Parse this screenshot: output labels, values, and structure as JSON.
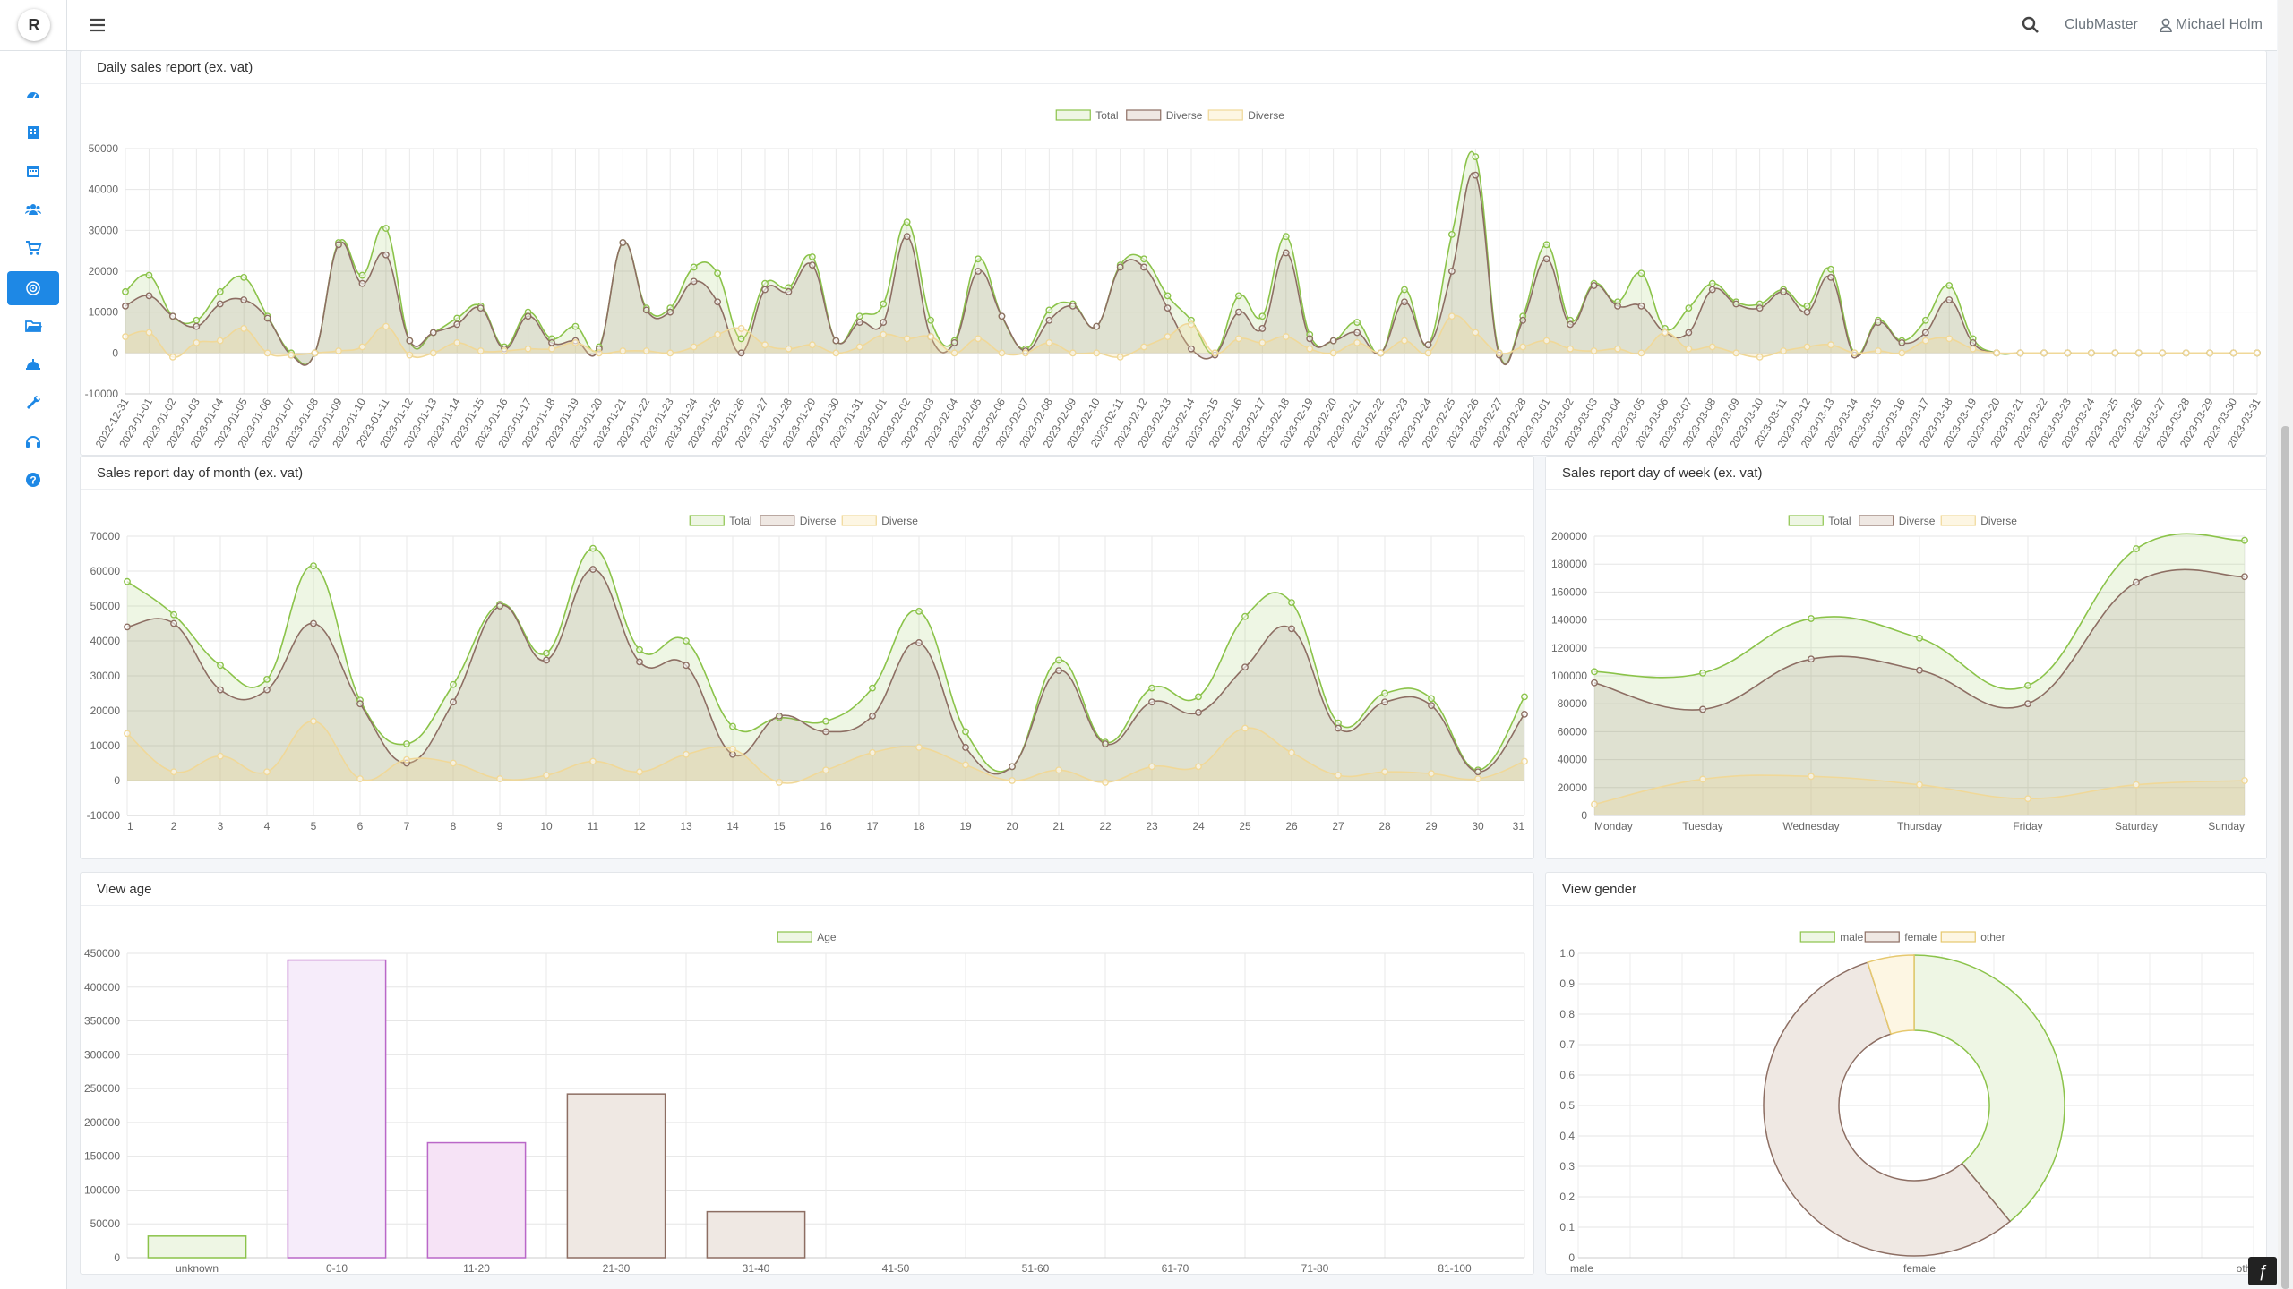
{
  "app": {
    "logo_letter": "R",
    "club_name": "ClubMaster",
    "user_name": "Michael Holm"
  },
  "sidebar": {
    "items": [
      {
        "icon": "dashboard-icon"
      },
      {
        "icon": "building-icon"
      },
      {
        "icon": "calendar-icon"
      },
      {
        "icon": "users-icon"
      },
      {
        "icon": "cart-icon"
      },
      {
        "icon": "target-icon",
        "active": true
      },
      {
        "icon": "folder-icon"
      },
      {
        "icon": "service-bell-icon"
      },
      {
        "icon": "wrench-icon"
      },
      {
        "icon": "headset-icon"
      },
      {
        "icon": "help-icon"
      }
    ]
  },
  "colors": {
    "total": "#8bc34a",
    "diverse1": "#8d6e63",
    "diverse2": "#f0d898"
  },
  "panels": {
    "daily": {
      "title": "Daily sales report (ex. vat)"
    },
    "dom": {
      "title": "Sales report day of month (ex. vat)"
    },
    "dow": {
      "title": "Sales report day of week (ex. vat)"
    },
    "age": {
      "title": "View age"
    },
    "gender": {
      "title": "View gender"
    }
  },
  "chart_data": [
    {
      "id": "daily",
      "type": "line",
      "title": "Daily sales report (ex. vat)",
      "x_start": "2022-12-31",
      "x_end": "2023-03-31",
      "ylim": [
        -10000,
        50000
      ],
      "yticks": [
        -10000,
        0,
        10000,
        20000,
        30000,
        40000,
        50000
      ],
      "legend": "top-center",
      "grid": true,
      "series": [
        {
          "name": "Total",
          "values": [
            15000,
            19000,
            9000,
            8000,
            15000,
            18500,
            9000,
            0,
            0,
            27000,
            19000,
            30500,
            3000,
            5000,
            8500,
            11500,
            1500,
            10000,
            3500,
            6500,
            1500,
            27000,
            11000,
            11000,
            21000,
            19500,
            3500,
            17000,
            16000,
            23500,
            3000,
            9000,
            12000,
            32000,
            8000,
            3000,
            23000,
            9000,
            1000,
            10500,
            12000,
            6500,
            21500,
            23000,
            14000,
            8000,
            0,
            14000,
            9000,
            28500,
            4500,
            3000,
            7500,
            0,
            15500,
            2000,
            29000,
            48000,
            0,
            9000,
            26500,
            8000,
            17000,
            12500,
            19500,
            6000,
            11000,
            17000,
            12500,
            12000,
            15500,
            11500,
            20500,
            0,
            8000,
            3000,
            8000,
            16500,
            3500,
            0,
            0,
            0,
            0,
            0,
            0,
            0,
            0,
            0,
            0,
            0,
            0
          ]
        },
        {
          "name": "Diverse",
          "values": [
            11500,
            14000,
            9000,
            6500,
            12000,
            13000,
            8500,
            -500,
            0,
            26500,
            17000,
            24000,
            3000,
            5000,
            7000,
            11000,
            1000,
            9000,
            2500,
            3000,
            1000,
            27000,
            10500,
            10000,
            17500,
            12500,
            0,
            15500,
            15000,
            21500,
            3000,
            7500,
            7500,
            28500,
            4000,
            2500,
            20000,
            9000,
            500,
            8000,
            11500,
            6500,
            21000,
            21000,
            11000,
            1000,
            -500,
            10000,
            6000,
            24500,
            3500,
            3000,
            5000,
            0,
            12500,
            2000,
            20000,
            43500,
            -500,
            8000,
            23000,
            7000,
            16500,
            11500,
            11500,
            5000,
            5000,
            15500,
            12000,
            11000,
            15000,
            10000,
            18500,
            -500,
            7500,
            2500,
            5000,
            13000,
            2500,
            0,
            0,
            0,
            0,
            0,
            0,
            0,
            0,
            0,
            0,
            0,
            0
          ]
        },
        {
          "name": "Diverse",
          "values": [
            4000,
            5000,
            -1000,
            2500,
            3000,
            6000,
            0,
            -500,
            0,
            500,
            1500,
            6500,
            -500,
            0,
            2500,
            500,
            500,
            1000,
            1000,
            2500,
            0,
            500,
            500,
            0,
            1500,
            4500,
            6000,
            2000,
            1000,
            2000,
            0,
            1500,
            4500,
            3500,
            4000,
            0,
            3500,
            0,
            0,
            2500,
            0,
            0,
            -1000,
            1500,
            4000,
            7000,
            0,
            3500,
            2500,
            4000,
            1000,
            0,
            2500,
            0,
            3000,
            0,
            9000,
            5000,
            0,
            1500,
            3000,
            1000,
            500,
            1000,
            0,
            5000,
            1000,
            1500,
            0,
            -1000,
            500,
            1500,
            2000,
            0,
            500,
            0,
            3000,
            3500,
            1000,
            0,
            0,
            0,
            0,
            0,
            0,
            0,
            0,
            0,
            0,
            0,
            0
          ]
        }
      ]
    },
    {
      "id": "dom",
      "type": "line",
      "title": "Sales report day of month (ex. vat)",
      "categories": [
        "1",
        "2",
        "3",
        "4",
        "5",
        "6",
        "7",
        "8",
        "9",
        "10",
        "11",
        "12",
        "13",
        "14",
        "15",
        "16",
        "17",
        "18",
        "19",
        "20",
        "21",
        "22",
        "23",
        "24",
        "25",
        "26",
        "27",
        "28",
        "29",
        "30",
        "31"
      ],
      "ylim": [
        -10000,
        70000
      ],
      "yticks": [
        -10000,
        0,
        10000,
        20000,
        30000,
        40000,
        50000,
        60000,
        70000
      ],
      "legend": "top-center",
      "grid": true,
      "series": [
        {
          "name": "Total",
          "values": [
            57000,
            47500,
            33000,
            29000,
            61500,
            23000,
            10500,
            27500,
            50500,
            36500,
            66500,
            37500,
            40000,
            15500,
            18000,
            17000,
            26500,
            48500,
            14000,
            4000,
            34500,
            11000,
            26500,
            24000,
            47000,
            51000,
            16500,
            25000,
            23500,
            3000,
            24000
          ]
        },
        {
          "name": "Diverse",
          "values": [
            44000,
            45000,
            26000,
            26000,
            45000,
            22000,
            5000,
            22500,
            50000,
            34500,
            60500,
            34000,
            33000,
            7500,
            18500,
            14000,
            18500,
            39500,
            9500,
            4000,
            31500,
            10500,
            22500,
            19500,
            32500,
            43500,
            15000,
            22500,
            21500,
            2500,
            19000
          ]
        },
        {
          "name": "Diverse",
          "values": [
            13500,
            2500,
            7000,
            2500,
            17000,
            500,
            6000,
            5000,
            500,
            1500,
            5500,
            2500,
            7500,
            9000,
            -500,
            3000,
            8000,
            9500,
            4500,
            0,
            3000,
            -500,
            4000,
            4000,
            15000,
            8000,
            1500,
            2500,
            2000,
            500,
            5500
          ]
        }
      ]
    },
    {
      "id": "dow",
      "type": "line",
      "title": "Sales report day of week (ex. vat)",
      "categories": [
        "Monday",
        "Tuesday",
        "Wednesday",
        "Thursday",
        "Friday",
        "Saturday",
        "Sunday"
      ],
      "ylim": [
        0,
        200000
      ],
      "yticks": [
        0,
        20000,
        40000,
        60000,
        80000,
        100000,
        120000,
        140000,
        160000,
        180000,
        200000
      ],
      "legend": "top-center",
      "grid": true,
      "series": [
        {
          "name": "Total",
          "values": [
            103000,
            102000,
            141000,
            127000,
            93000,
            191000,
            197000
          ]
        },
        {
          "name": "Diverse",
          "values": [
            95000,
            76000,
            112000,
            104000,
            80000,
            167000,
            171000
          ]
        },
        {
          "name": "Diverse",
          "values": [
            8000,
            26000,
            28000,
            22000,
            12000,
            22000,
            25000
          ]
        }
      ]
    },
    {
      "id": "age",
      "type": "bar",
      "title": "View age",
      "categories": [
        "unknown",
        "0-10",
        "11-20",
        "21-30",
        "31-40",
        "41-50",
        "51-60",
        "61-70",
        "71-80",
        "81-100"
      ],
      "series": [
        {
          "name": "Age",
          "values": [
            32000,
            440000,
            170000,
            242000,
            68000,
            0,
            0,
            0,
            0,
            0
          ]
        }
      ],
      "ylim": [
        0,
        450000
      ],
      "yticks": [
        0,
        50000,
        100000,
        150000,
        200000,
        250000,
        300000,
        350000,
        400000,
        450000
      ],
      "legend": "top-center",
      "grid": true,
      "bar_colors": [
        "#8bc34a",
        "#ba68c8",
        "#ba68c8",
        "#8d6e63",
        "#8d6e63",
        "#8d6e63",
        "#8d6e63",
        "#8d6e63",
        "#8d6e63",
        "#8d6e63"
      ],
      "bar_fills": [
        "#eef6e4",
        "#f6ecfa",
        "#f6e3f6",
        "#efe8e3",
        "#efe8e3",
        "#efe8e3",
        "#efe8e3",
        "#efe8e3",
        "#efe8e3",
        "#efe8e3"
      ]
    },
    {
      "id": "gender",
      "type": "pie",
      "title": "View gender",
      "labels": [
        "male",
        "female",
        "other"
      ],
      "values": [
        0.39,
        0.56,
        0.05
      ],
      "x_ticks": [
        "male",
        "female",
        "other"
      ],
      "ylim": [
        0,
        1
      ],
      "yticks": [
        "0",
        "0.1",
        "0.2",
        "0.3",
        "0.4",
        "0.5",
        "0.6",
        "0.7",
        "0.8",
        "0.9",
        "1.0"
      ],
      "legend": "top-center"
    }
  ]
}
